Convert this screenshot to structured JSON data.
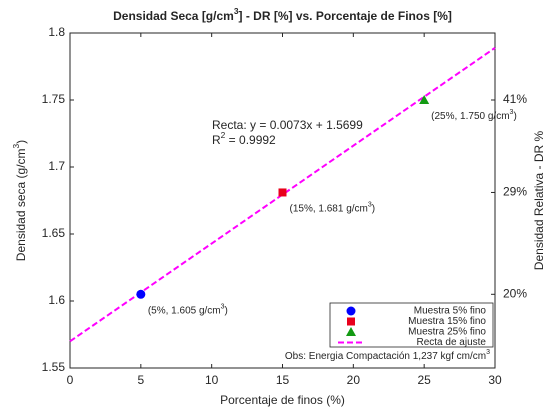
{
  "chart_data": {
    "type": "scatter",
    "title": [
      "Densidad Seca [g/cm",
      "3",
      "] - DR [%] vs. Porcentaje de Finos [%]"
    ],
    "x_label": "Porcentaje de finos (%)",
    "y_label": [
      "Densidad seca (g/cm",
      "3",
      ")"
    ],
    "y2_label": "Densidad Relativa - DR %",
    "xlim": [
      0,
      30
    ],
    "xticks": [
      0,
      5,
      10,
      15,
      20,
      25,
      30
    ],
    "ylim": [
      1.55,
      1.8
    ],
    "yticks": [
      1.55,
      1.6,
      1.65,
      1.7,
      1.75,
      1.8
    ],
    "y2ticks": [
      {
        "value": 20,
        "label": "20%"
      },
      {
        "value": 29,
        "label": "29%"
      },
      {
        "value": 41,
        "label": "41%"
      }
    ],
    "series": [
      {
        "name": "Muestra 5% fino",
        "color": "#0000ff",
        "marker": "circle",
        "x": [
          5
        ],
        "values": [
          1.605
        ],
        "label": [
          "(5%, 1.605 g/cm",
          "3",
          ")"
        ]
      },
      {
        "name": "Muestra 15% fino",
        "color": "#e8001c",
        "marker": "square",
        "x": [
          15
        ],
        "values": [
          1.681
        ],
        "label": [
          "(15%, 1.681 g/cm",
          "3",
          ")"
        ]
      },
      {
        "name": "Muestra 25% fino",
        "color": "#139a13",
        "marker": "triangle",
        "x": [
          25
        ],
        "values": [
          1.75
        ],
        "label": [
          "(25%, 1.750 g/cm",
          "3",
          ")"
        ]
      },
      {
        "name": "Recta de ajuste",
        "color": "#ff00ff",
        "marker": "dashed-line",
        "x": [
          0,
          30
        ],
        "values": [
          1.5699,
          1.7889
        ]
      }
    ],
    "annotations": [
      [
        "Recta: y = 0.0073x + 1.5699"
      ],
      [
        "R",
        "2",
        " = 0.9992"
      ]
    ],
    "note": "Obs: Energia Compactación 1,237 kgf cm/cm",
    "note_sup": "3",
    "legend": "lower right"
  }
}
